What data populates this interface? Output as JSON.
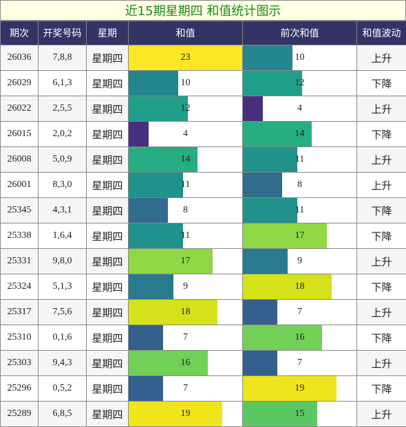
{
  "title": "近15期星期四 和值统计图示",
  "headers": [
    "期次",
    "开奖号码",
    "星期",
    "和值",
    "前次和值",
    "和值波动"
  ],
  "chart_data": {
    "type": "table",
    "xlim": [
      0,
      23
    ],
    "rows": [
      {
        "issue": "26036",
        "numbers": "7,8,8",
        "weekday": "星期四",
        "sum": 23,
        "prev_sum": 10,
        "wave": "上升"
      },
      {
        "issue": "26029",
        "numbers": "6,1,3",
        "weekday": "星期四",
        "sum": 10,
        "prev_sum": 12,
        "wave": "下降"
      },
      {
        "issue": "26022",
        "numbers": "2,5,5",
        "weekday": "星期四",
        "sum": 12,
        "prev_sum": 4,
        "wave": "上升"
      },
      {
        "issue": "26015",
        "numbers": "2,0,2",
        "weekday": "星期四",
        "sum": 4,
        "prev_sum": 14,
        "wave": "下降"
      },
      {
        "issue": "26008",
        "numbers": "5,0,9",
        "weekday": "星期四",
        "sum": 14,
        "prev_sum": 11,
        "wave": "上升"
      },
      {
        "issue": "26001",
        "numbers": "8,3,0",
        "weekday": "星期四",
        "sum": 11,
        "prev_sum": 8,
        "wave": "上升"
      },
      {
        "issue": "25345",
        "numbers": "4,3,1",
        "weekday": "星期四",
        "sum": 8,
        "prev_sum": 11,
        "wave": "下降"
      },
      {
        "issue": "25338",
        "numbers": "1,6,4",
        "weekday": "星期四",
        "sum": 11,
        "prev_sum": 17,
        "wave": "下降"
      },
      {
        "issue": "25331",
        "numbers": "9,8,0",
        "weekday": "星期四",
        "sum": 17,
        "prev_sum": 9,
        "wave": "上升"
      },
      {
        "issue": "25324",
        "numbers": "5,1,3",
        "weekday": "星期四",
        "sum": 9,
        "prev_sum": 18,
        "wave": "下降"
      },
      {
        "issue": "25317",
        "numbers": "7,5,6",
        "weekday": "星期四",
        "sum": 18,
        "prev_sum": 7,
        "wave": "上升"
      },
      {
        "issue": "25310",
        "numbers": "0,1,6",
        "weekday": "星期四",
        "sum": 7,
        "prev_sum": 16,
        "wave": "下降"
      },
      {
        "issue": "25303",
        "numbers": "9,4,3",
        "weekday": "星期四",
        "sum": 16,
        "prev_sum": 7,
        "wave": "上升"
      },
      {
        "issue": "25296",
        "numbers": "0,5,2",
        "weekday": "星期四",
        "sum": 7,
        "prev_sum": 19,
        "wave": "下降"
      },
      {
        "issue": "25289",
        "numbers": "6,8,5",
        "weekday": "星期四",
        "sum": 19,
        "prev_sum": 15,
        "wave": "上升"
      }
    ]
  },
  "colors": {
    "4": "#472f7d",
    "7": "#355f8d",
    "8": "#2f6c8e",
    "9": "#297a8e",
    "10": "#24868e",
    "11": "#21918c",
    "12": "#1f9e89",
    "14": "#26ad81",
    "15": "#5cc863",
    "16": "#73d056",
    "17": "#8fd744",
    "18": "#d5e21a",
    "19": "#f0e51c",
    "23": "#fde725"
  }
}
